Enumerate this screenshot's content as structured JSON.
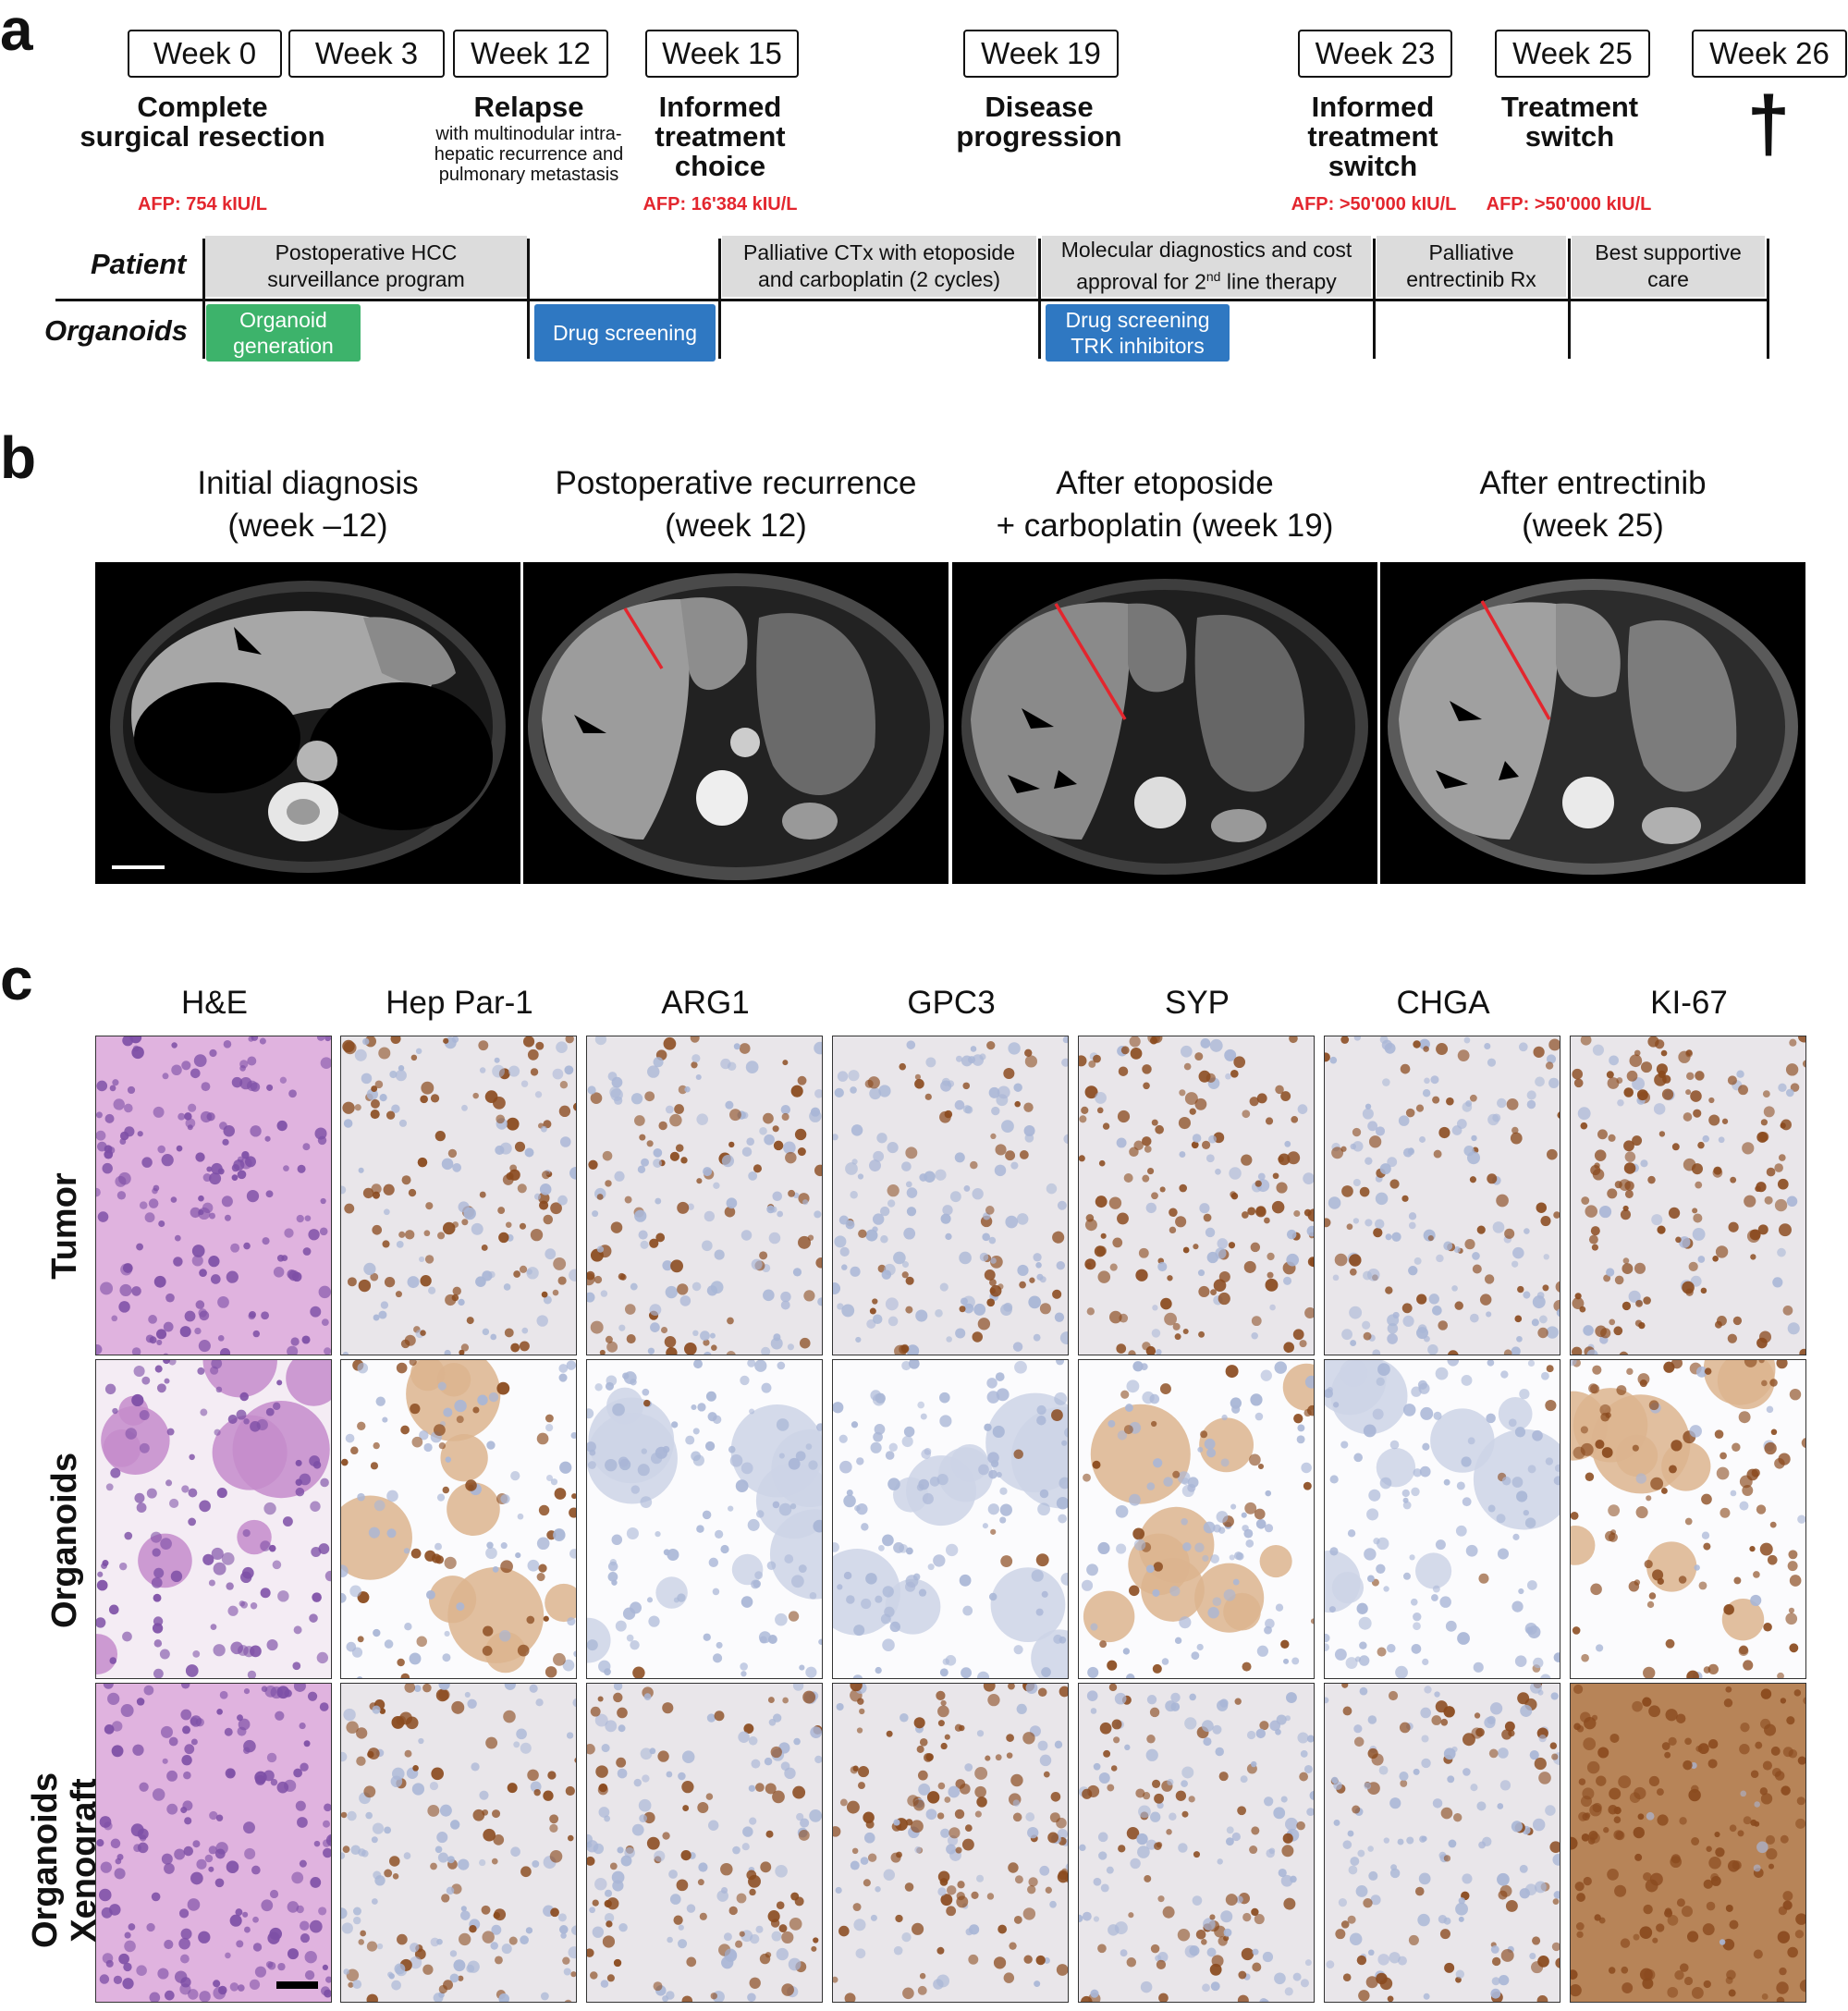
{
  "panel_a": {
    "letter": "a",
    "weeks": [
      "Week 0",
      "Week 3",
      "Week 12",
      "Week 15",
      "Week 19",
      "Week 23",
      "Week 25",
      "Week 26"
    ],
    "events": [
      {
        "lines": [
          "Complete",
          "surgical resection"
        ],
        "sub": [],
        "afp": "AFP: 754 kIU/L"
      },
      {
        "lines": [
          "Relapse"
        ],
        "sub": [
          "with multinodular intra-",
          "hepatic recurrence and",
          "pulmonary metastasis"
        ],
        "afp": ""
      },
      {
        "lines": [
          "Informed",
          "treatment",
          "choice"
        ],
        "sub": [],
        "afp": "AFP: 16'384 kIU/L"
      },
      {
        "lines": [
          "Disease",
          "progression"
        ],
        "sub": [],
        "afp": ""
      },
      {
        "lines": [
          "Informed",
          "treatment",
          "switch"
        ],
        "sub": [],
        "afp": "AFP: >50'000 kIU/L"
      },
      {
        "lines": [
          "Treatment",
          "switch"
        ],
        "sub": [],
        "afp": "AFP: >50'000 kIU/L"
      }
    ],
    "death_symbol": "†",
    "row_patient": "Patient",
    "row_organoids": "Organoids",
    "patient_boxes": [
      [
        "Postoperative HCC",
        "surveillance program"
      ],
      [
        "Palliative CTx with etoposide",
        "and carboplatin (2 cycles)"
      ],
      [
        "Molecular diagnostics and cost",
        "approval for 2nd line therapy"
      ],
      [
        "Palliative",
        "entrectinib Rx"
      ],
      [
        "Best supportive",
        "care"
      ]
    ],
    "organoid_boxes": [
      {
        "lines": [
          "Organoid",
          "generation"
        ],
        "color": "#3db36b"
      },
      {
        "lines": [
          "Drug screening"
        ],
        "color": "#2f78c2"
      },
      {
        "lines": [
          "Drug screening",
          "TRK inhibitors"
        ],
        "color": "#2f78c2"
      }
    ]
  },
  "panel_b": {
    "letter": "b",
    "titles": [
      [
        "Initial diagnosis",
        "(week –12)"
      ],
      [
        "Postoperative recurrence",
        "(week 12)"
      ],
      [
        "After etoposide",
        "+ carboplatin (week 19)"
      ],
      [
        "After entrectinib",
        "(week 25)"
      ]
    ],
    "line_color": "#e3262e"
  },
  "panel_c": {
    "letter": "c",
    "stains": [
      "H&E",
      "Hep Par-1",
      "ARG1",
      "GPC3",
      "SYP",
      "CHGA",
      "KI-67"
    ],
    "rows": [
      [
        "Tumor"
      ],
      [
        "Organoids"
      ],
      [
        "Organoids",
        "Xenograft"
      ]
    ],
    "colors": {
      "he": "#d9a6d8",
      "nucleus_he": "#7d4fa6",
      "dab": "#8a4a1e",
      "hema": "#a9b6d6"
    }
  }
}
